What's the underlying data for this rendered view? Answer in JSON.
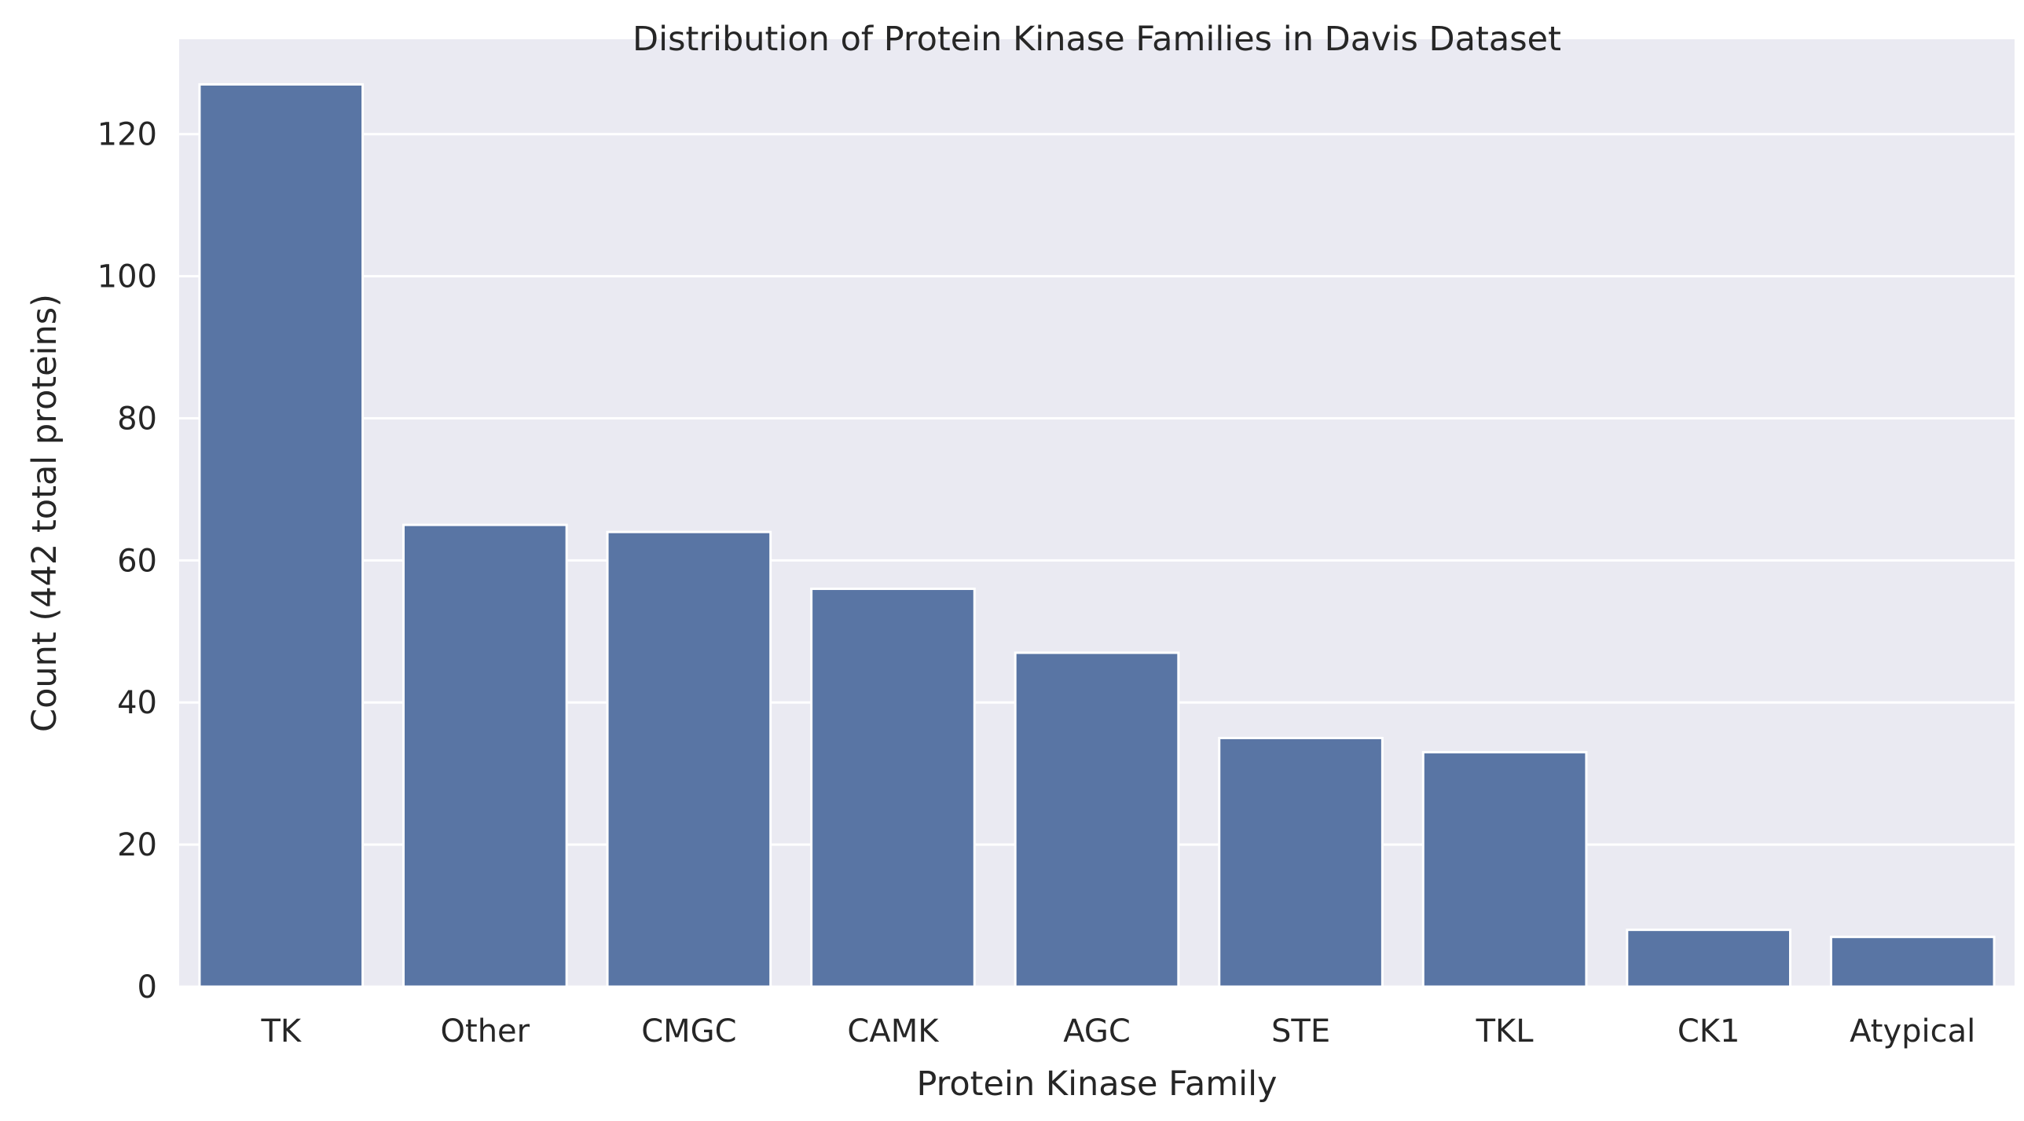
{
  "chart_data": {
    "type": "bar",
    "title": "Distribution of Protein Kinase Families in Davis Dataset",
    "xlabel": "Protein Kinase Family",
    "ylabel": "Count (442 total proteins)",
    "categories": [
      "TK",
      "Other",
      "CMGC",
      "CAMK",
      "AGC",
      "STE",
      "TKL",
      "CK1",
      "Atypical"
    ],
    "values": [
      127,
      65,
      64,
      56,
      47,
      35,
      33,
      8,
      7
    ],
    "ylim": [
      0,
      133.35
    ],
    "yticks": [
      0,
      20,
      40,
      60,
      80,
      100,
      120
    ],
    "grid": true,
    "legend": "none",
    "colors": {
      "bar": "#5975a4",
      "plot_background": "#eaeaf2",
      "grid": "#ffffff",
      "text": "#262626"
    }
  }
}
